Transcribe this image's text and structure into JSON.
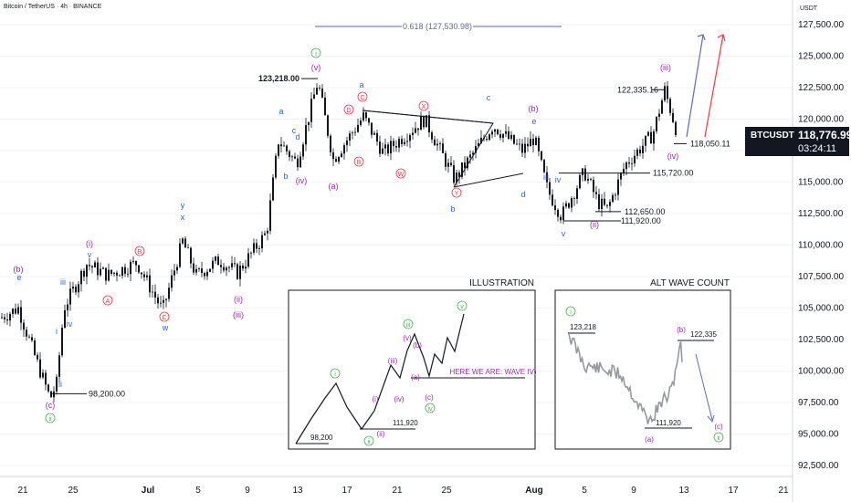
{
  "header": {
    "title": "Bitcoin / TetherUS · 4h · BINANCE",
    "unit": "USDT"
  },
  "current": {
    "symbol": "BTCUSDT",
    "price": "118,776.99",
    "countdown": "03:24:11"
  },
  "colors": {
    "candle": "#131722",
    "green": "#4caf50",
    "purple": "#9c27b0",
    "blue": "#2962ff",
    "red": "#f23645",
    "grey": "#787b86"
  },
  "chart_data": {
    "type": "candlestick",
    "title": "Bitcoin / TetherUS · 4h · BINANCE",
    "y_axis": {
      "unit": "USDT",
      "ticks": [
        "127,500.00",
        "125,000.00",
        "122,500.00",
        "120,000.00",
        "117,500.00",
        "115,000.00",
        "112,500.00",
        "110,000.00",
        "107,500.00",
        "105,000.00",
        "102,500.00",
        "100,000.00",
        "97,500.00",
        "95,000.00",
        "92,500.00"
      ],
      "ylim": [
        91500,
        128700
      ]
    },
    "x_axis": {
      "ticks": [
        "21",
        "25",
        "Jul",
        "5",
        "9",
        "13",
        "17",
        "21",
        "25",
        "Aug",
        "5",
        "9",
        "13",
        "17",
        "21"
      ]
    },
    "fib_label": "0.618 (127,530.98)",
    "key_points": [
      {
        "date": "Jun 23",
        "price": 98200,
        "label": "98,200.00"
      },
      {
        "date": "Jul 14",
        "price": 123218,
        "label": "123,218.00"
      },
      {
        "date": "Aug 3",
        "price": 111920,
        "label": "111,920.00"
      },
      {
        "date": "Aug 6",
        "price": 115720,
        "label": "115,720.00"
      },
      {
        "date": "Aug 8",
        "price": 112650,
        "label": "112,650.00"
      },
      {
        "date": "Aug 11",
        "price": 122335,
        "label": "122,335.16"
      },
      {
        "date": "Aug 12",
        "price": 118050,
        "label": "118,050.11"
      }
    ],
    "waves": [
      {
        "t": "(b)",
        "c": "purple"
      },
      {
        "t": "e",
        "c": "blue"
      },
      {
        "t": "iii",
        "c": "blue"
      },
      {
        "t": "i",
        "c": "blue"
      },
      {
        "t": "iv",
        "c": "blue"
      },
      {
        "t": "ii",
        "c": "blue"
      },
      {
        "t": "(c)",
        "c": "purple"
      },
      {
        "t": "ii",
        "c": "green"
      },
      {
        "t": "(i)",
        "c": "purple"
      },
      {
        "t": "v",
        "c": "blue"
      },
      {
        "t": "A",
        "c": "red"
      },
      {
        "t": "B",
        "c": "red"
      },
      {
        "t": "C",
        "c": "red"
      },
      {
        "t": "w",
        "c": "blue"
      },
      {
        "t": "x",
        "c": "blue"
      },
      {
        "t": "y",
        "c": "blue"
      },
      {
        "t": "(ii)",
        "c": "purple"
      },
      {
        "t": "(iii)",
        "c": "purple"
      },
      {
        "t": "a",
        "c": "blue"
      },
      {
        "t": "b",
        "c": "blue"
      },
      {
        "t": "c",
        "c": "blue"
      },
      {
        "t": "d",
        "c": "blue"
      },
      {
        "t": "(iv)",
        "c": "purple"
      },
      {
        "t": "(v)",
        "c": "purple"
      },
      {
        "t": "i",
        "c": "green"
      },
      {
        "t": "(a)",
        "c": "purple"
      },
      {
        "t": "a",
        "c": "blue"
      },
      {
        "t": "C",
        "c": "red"
      },
      {
        "t": "B",
        "c": "red"
      },
      {
        "t": "D",
        "c": "red"
      },
      {
        "t": "X",
        "c": "red"
      },
      {
        "t": "W",
        "c": "red"
      },
      {
        "t": "Y",
        "c": "red"
      },
      {
        "t": "b",
        "c": "blue"
      },
      {
        "t": "c",
        "c": "blue"
      },
      {
        "t": "d",
        "c": "blue"
      },
      {
        "t": "(b)",
        "c": "purple"
      },
      {
        "t": "e",
        "c": "blue"
      },
      {
        "t": "iii",
        "c": "blue"
      },
      {
        "t": "iv",
        "c": "blue"
      },
      {
        "t": "v",
        "c": "blue"
      },
      {
        "t": "(ii)",
        "c": "purple"
      },
      {
        "t": "(iii)",
        "c": "purple"
      },
      {
        "t": "(iv)",
        "c": "purple"
      }
    ],
    "illustration": {
      "title": "ILLUSTRATION",
      "note": "HERE WE ARE: WAVE IV)",
      "low": "98,200",
      "mid": "111,920"
    },
    "alt_wave": {
      "title": "ALT WAVE COUNT",
      "high1": "123,218",
      "high2": "122,335",
      "low": "111,920"
    }
  }
}
